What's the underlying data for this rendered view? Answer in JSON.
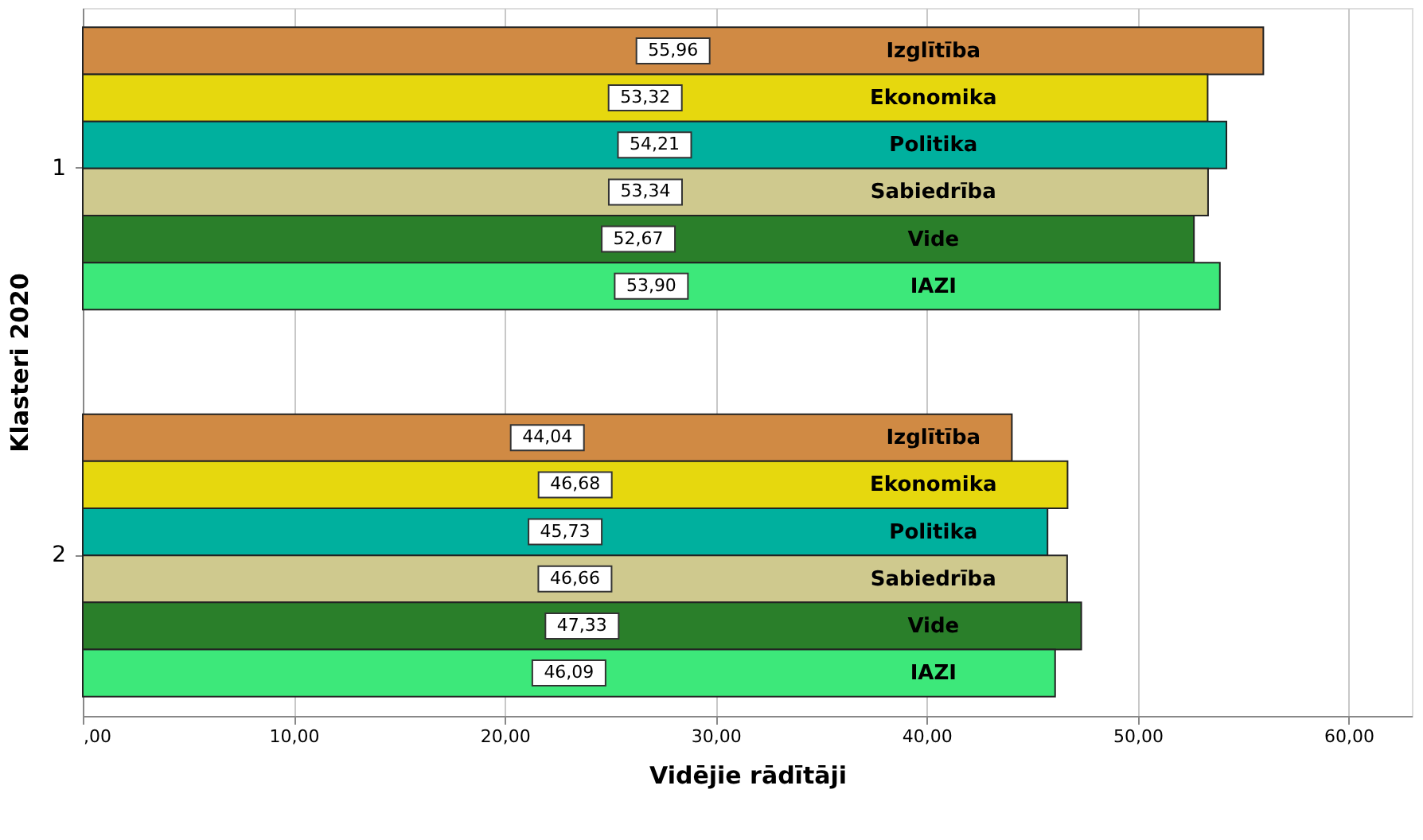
{
  "chart_data": {
    "type": "bar",
    "orientation": "horizontal",
    "xlabel": "Vidējie rādītāji",
    "ylabel": "Klasteri 2020",
    "categories": [
      "1",
      "2"
    ],
    "series": [
      {
        "name": "Izglītība",
        "color": "#d08a44",
        "values": [
          55.96,
          44.04
        ],
        "value_labels": [
          "55,96",
          "44,04"
        ]
      },
      {
        "name": "Ekonomika",
        "color": "#e6d80e",
        "values": [
          53.32,
          46.68
        ],
        "value_labels": [
          "53,32",
          "46,68"
        ]
      },
      {
        "name": "Politika",
        "color": "#00b09e",
        "values": [
          54.21,
          45.73
        ],
        "value_labels": [
          "54,21",
          "45,73"
        ]
      },
      {
        "name": "Sabiedrība",
        "color": "#cfc98e",
        "values": [
          53.34,
          46.66
        ],
        "value_labels": [
          "53,34",
          "46,66"
        ]
      },
      {
        "name": "Vide",
        "color": "#2a7f2a",
        "values": [
          52.67,
          47.33
        ],
        "value_labels": [
          "52,67",
          "47,33"
        ]
      },
      {
        "name": "IAZI",
        "color": "#3de87a",
        "values": [
          53.9,
          46.09
        ],
        "value_labels": [
          "53,90",
          "46,09"
        ]
      }
    ],
    "xlim": [
      0,
      63
    ],
    "xticks": [
      {
        "value": 0,
        "label": ",00"
      },
      {
        "value": 10,
        "label": "10,00"
      },
      {
        "value": 20,
        "label": "20,00"
      },
      {
        "value": 30,
        "label": "30,00"
      },
      {
        "value": 40,
        "label": "40,00"
      },
      {
        "value": 50,
        "label": "50,00"
      },
      {
        "value": 60,
        "label": "60,00"
      }
    ],
    "grid": "x",
    "legend": false
  }
}
